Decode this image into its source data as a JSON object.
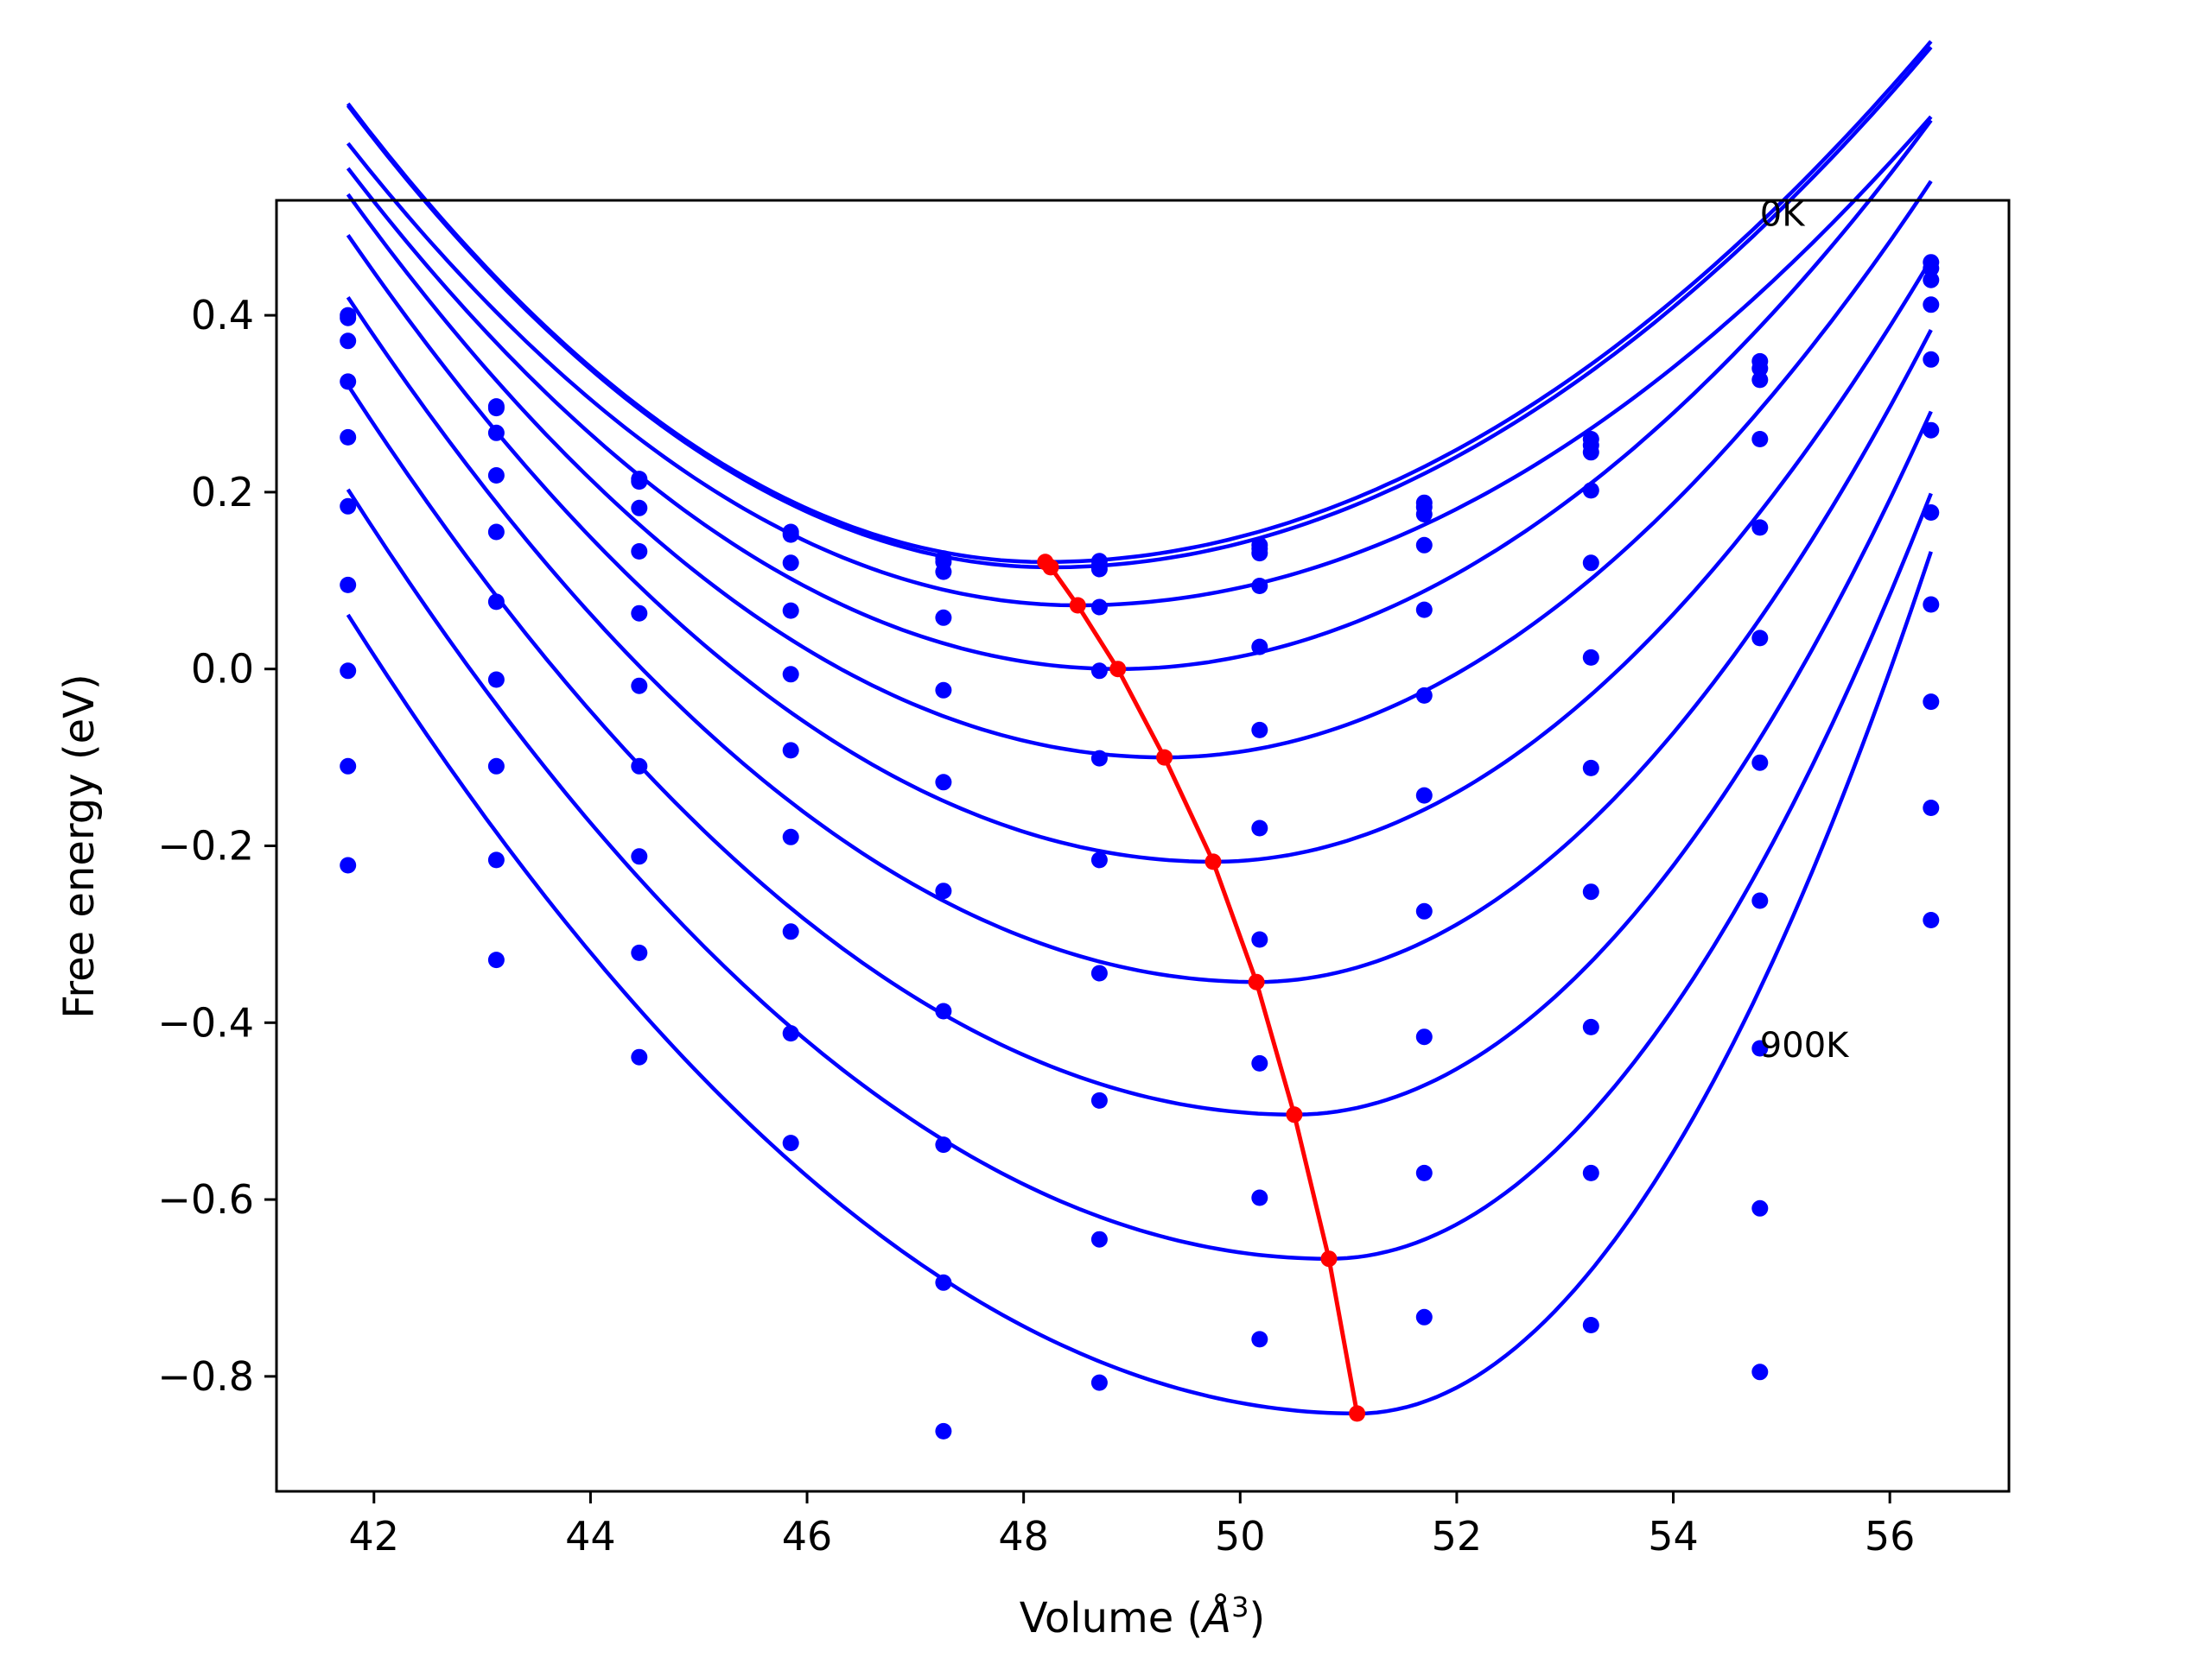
{
  "chart_data": {
    "type": "scatter",
    "xlabel": "Volume (",
    "xlabel_unit": "Å",
    "xlabel_exp": "3",
    "xlabel_close": ")",
    "ylabel": "Free energy (eV)",
    "xlim": [
      41.1,
      57.1
    ],
    "ylim": [
      -0.93,
      0.53
    ],
    "xticks": [
      42,
      44,
      46,
      48,
      50,
      52,
      54,
      56
    ],
    "xtick_labels": [
      "42",
      "44",
      "46",
      "48",
      "50",
      "52",
      "54",
      "56"
    ],
    "yticks": [
      0.4,
      0.2,
      0.0,
      -0.2,
      -0.4,
      -0.6,
      -0.8
    ],
    "ytick_labels": [
      "0.4",
      "0.2",
      "0.0",
      "−0.2",
      "−0.4",
      "−0.6",
      "−0.8"
    ],
    "annotations": [
      {
        "text": "0K",
        "x": 54.8,
        "y": 0.515
      },
      {
        "text": "900K",
        "x": 54.8,
        "y": -0.425
      }
    ],
    "x": [
      41.76,
      43.13,
      44.45,
      45.85,
      47.26,
      48.7,
      50.18,
      51.7,
      53.24,
      54.8,
      56.38
    ],
    "series_color": "#0000ff",
    "min_line_color": "#ff0000",
    "series": [
      {
        "points": [
          0.4,
          0.297,
          0.215,
          0.155,
          0.125,
          0.122,
          0.14,
          0.188,
          0.26,
          0.348,
          0.46
        ],
        "fit": {
          "vmin": 48.2,
          "fmin": 0.121,
          "kl": 0.0125,
          "kr": 0.0088
        }
      },
      {
        "points": [
          0.397,
          0.295,
          0.212,
          0.152,
          0.121,
          0.117,
          0.136,
          0.183,
          0.253,
          0.34,
          0.453
        ],
        "fit": {
          "vmin": 48.25,
          "fmin": 0.115,
          "kl": 0.0124,
          "kr": 0.0089
        }
      },
      {
        "points": [
          0.371,
          0.267,
          0.182,
          0.12,
          0.11,
          0.113,
          0.131,
          0.175,
          0.245,
          0.327,
          0.44
        ],
        "fit": {
          "vmin": 48.5,
          "fmin": 0.072,
          "kl": 0.0115,
          "kr": 0.0089
        }
      },
      {
        "points": [
          0.325,
          0.219,
          0.133,
          0.066,
          0.058,
          0.07,
          0.094,
          0.14,
          0.202,
          0.26,
          0.412
        ],
        "fit": {
          "vmin": 48.87,
          "fmin": 0.0,
          "kl": 0.0112,
          "kr": 0.011
        }
      },
      {
        "points": [
          0.262,
          0.155,
          0.063,
          -0.006,
          -0.024,
          -0.002,
          0.025,
          0.067,
          0.12,
          0.16,
          0.35
        ],
        "fit": {
          "vmin": 49.3,
          "fmin": -0.1,
          "kl": 0.0112,
          "kr": 0.013
        }
      },
      {
        "points": [
          0.184,
          0.076,
          -0.019,
          -0.092,
          -0.128,
          -0.101,
          -0.069,
          -0.03,
          0.013,
          0.035,
          0.27
        ],
        "fit": {
          "vmin": 49.75,
          "fmin": -0.218,
          "kl": 0.0111,
          "kr": 0.0155
        }
      },
      {
        "points": [
          0.095,
          -0.012,
          -0.11,
          -0.19,
          -0.251,
          -0.216,
          -0.18,
          -0.143,
          -0.112,
          -0.106,
          0.177
        ],
        "fit": {
          "vmin": 50.15,
          "fmin": -0.354,
          "kl": 0.011,
          "kr": 0.019
        }
      },
      {
        "points": [
          -0.002,
          -0.11,
          -0.212,
          -0.297,
          -0.387,
          -0.344,
          -0.306,
          -0.274,
          -0.252,
          -0.262,
          0.073
        ],
        "fit": {
          "vmin": 50.5,
          "fmin": -0.504,
          "kl": 0.0108,
          "kr": 0.023
        }
      },
      {
        "points": [
          -0.11,
          -0.216,
          -0.321,
          -0.412,
          -0.538,
          -0.488,
          -0.446,
          -0.416,
          -0.405,
          -0.429,
          -0.037
        ],
        "fit": {
          "vmin": 50.82,
          "fmin": -0.667,
          "kl": 0.0106,
          "kr": 0.028
        }
      },
      {
        "points": [
          -0.222,
          -0.329,
          -0.439,
          -0.536,
          -0.694,
          -0.645,
          -0.598,
          -0.57,
          -0.57,
          -0.61,
          -0.157
        ],
        "fit": {
          "vmin": 51.08,
          "fmin": -0.842,
          "kl": 0.0104,
          "kr": 0.0347
        }
      },
      {
        "points": [
          null,
          null,
          null,
          null,
          -0.862,
          -0.807,
          -0.758,
          -0.733,
          -0.742,
          -0.795,
          -0.284
        ]
      }
    ],
    "minima_line": {
      "x": [
        48.2,
        48.25,
        48.5,
        48.87,
        49.3,
        49.75,
        50.15,
        50.5,
        50.82,
        51.08
      ],
      "y": [
        0.121,
        0.115,
        0.072,
        0.0,
        -0.1,
        -0.218,
        -0.354,
        -0.504,
        -0.667,
        -0.842
      ]
    }
  }
}
